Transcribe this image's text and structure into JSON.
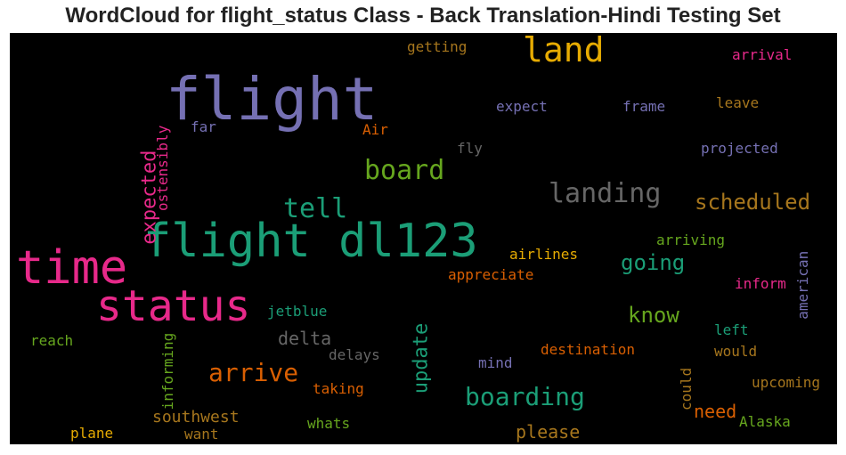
{
  "chart_data": {
    "type": "wordcloud",
    "title": "WordCloud for flight_status Class - Back Translation-Hindi Testing Set",
    "background": "#000000",
    "palette": [
      "#7570b3",
      "#1b9e77",
      "#e7298a",
      "#d95f02",
      "#66a61e",
      "#e6ab02",
      "#a6761d",
      "#666666"
    ],
    "words": [
      {
        "text": "flight",
        "color": "#7570b3"
      },
      {
        "text": "flight dl123",
        "color": "#1b9e77"
      },
      {
        "text": "time",
        "color": "#e7298a"
      },
      {
        "text": "status",
        "color": "#e7298a"
      },
      {
        "text": "land",
        "color": "#e6ab02"
      },
      {
        "text": "board",
        "color": "#66a61e"
      },
      {
        "text": "landing",
        "color": "#666666"
      },
      {
        "text": "tell",
        "color": "#1b9e77"
      },
      {
        "text": "scheduled",
        "color": "#a6761d"
      },
      {
        "text": "expected",
        "color": "#e7298a"
      },
      {
        "text": "ostensibly",
        "color": "#e7298a"
      },
      {
        "text": "getting",
        "color": "#a6761d"
      },
      {
        "text": "arrival",
        "color": "#e7298a"
      },
      {
        "text": "expect",
        "color": "#7570b3"
      },
      {
        "text": "frame",
        "color": "#7570b3"
      },
      {
        "text": "leave",
        "color": "#a6761d"
      },
      {
        "text": "far",
        "color": "#7570b3"
      },
      {
        "text": "Air",
        "color": "#d95f02"
      },
      {
        "text": "fly",
        "color": "#666666"
      },
      {
        "text": "projected",
        "color": "#7570b3"
      },
      {
        "text": "going",
        "color": "#1b9e77"
      },
      {
        "text": "arriving",
        "color": "#66a61e"
      },
      {
        "text": "airlines",
        "color": "#e6ab02"
      },
      {
        "text": "appreciate",
        "color": "#d95f02"
      },
      {
        "text": "american",
        "color": "#7570b3"
      },
      {
        "text": "inform",
        "color": "#e7298a"
      },
      {
        "text": "know",
        "color": "#66a61e"
      },
      {
        "text": "jetblue",
        "color": "#1b9e77"
      },
      {
        "text": "left",
        "color": "#1b9e77"
      },
      {
        "text": "reach",
        "color": "#66a61e"
      },
      {
        "text": "delta",
        "color": "#666666"
      },
      {
        "text": "update",
        "color": "#1b9e77"
      },
      {
        "text": "informing",
        "color": "#66a61e"
      },
      {
        "text": "delays",
        "color": "#666666"
      },
      {
        "text": "destination",
        "color": "#d95f02"
      },
      {
        "text": "would",
        "color": "#a6761d"
      },
      {
        "text": "arrive",
        "color": "#d95f02"
      },
      {
        "text": "mind",
        "color": "#7570b3"
      },
      {
        "text": "taking",
        "color": "#d95f02"
      },
      {
        "text": "boarding",
        "color": "#1b9e77"
      },
      {
        "text": "could",
        "color": "#a6761d"
      },
      {
        "text": "upcoming",
        "color": "#a6761d"
      },
      {
        "text": "southwest",
        "color": "#a6761d"
      },
      {
        "text": "need",
        "color": "#d95f02"
      },
      {
        "text": "whats",
        "color": "#66a61e"
      },
      {
        "text": "Alaska",
        "color": "#66a61e"
      },
      {
        "text": "plane",
        "color": "#e6ab02"
      },
      {
        "text": "want",
        "color": "#a6761d"
      },
      {
        "text": "please",
        "color": "#a6761d"
      }
    ]
  }
}
